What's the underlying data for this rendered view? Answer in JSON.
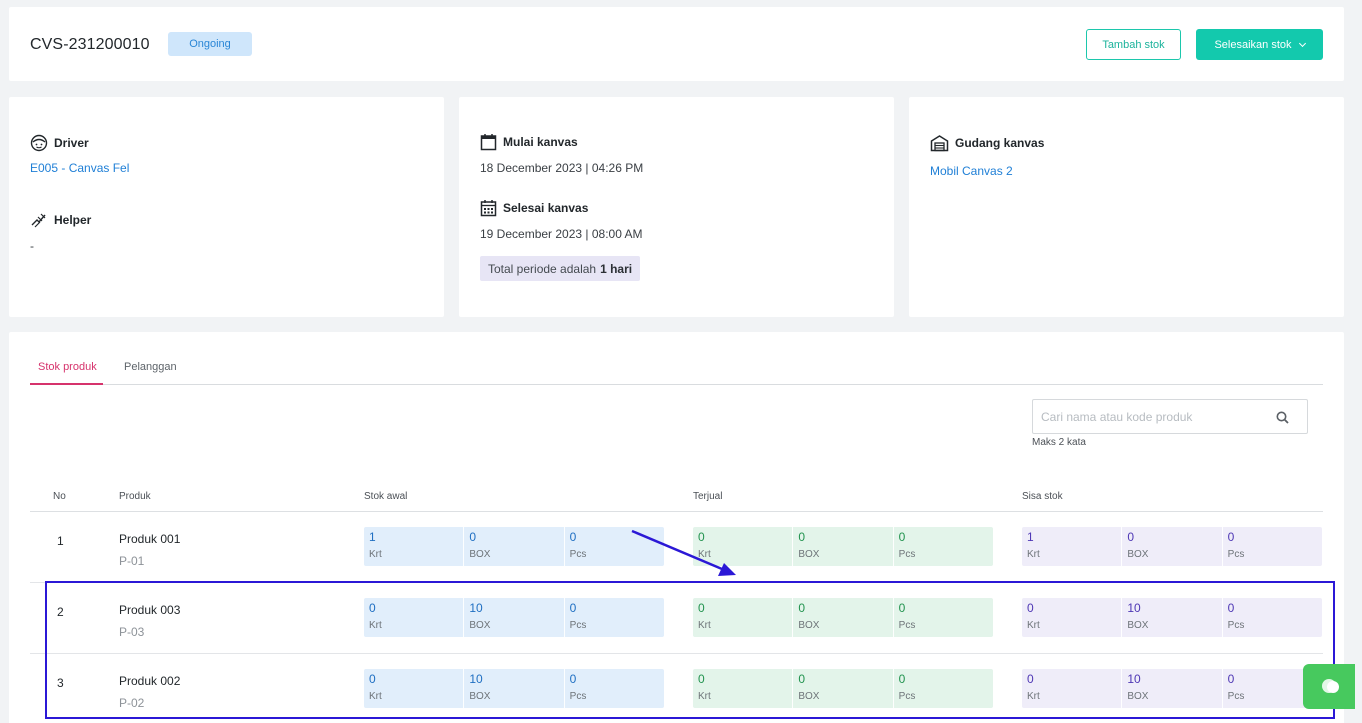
{
  "header": {
    "code": "CVS-231200010",
    "status": "Ongoing",
    "add_stock_label": "Tambah stok",
    "finish_stock_label": "Selesaikan stok"
  },
  "driver": {
    "label": "Driver",
    "value": "E005 - Canvas Fel"
  },
  "helper": {
    "label": "Helper",
    "value": "-"
  },
  "canvas_start": {
    "label": "Mulai kanvas",
    "value": "18 December 2023 | 04:26 PM"
  },
  "canvas_end": {
    "label": "Selesai kanvas",
    "value": "19 December 2023 | 08:00 AM"
  },
  "period": {
    "prefix": "Total periode adalah",
    "value": "1 hari"
  },
  "warehouse": {
    "label": "Gudang kanvas",
    "value": "Mobil Canvas 2"
  },
  "tabs": [
    {
      "label": "Stok produk"
    },
    {
      "label": "Pelanggan"
    }
  ],
  "search": {
    "placeholder": "Cari nama atau kode produk",
    "hint": "Maks 2 kata"
  },
  "table": {
    "headers": {
      "no": "No",
      "product": "Produk",
      "initial": "Stok awal",
      "sold": "Terjual",
      "remaining": "Sisa stok"
    },
    "units": [
      "Krt",
      "BOX",
      "Pcs"
    ],
    "rows": [
      {
        "no": "1",
        "name": "Produk 001",
        "code": "P-01",
        "initial": [
          "1",
          "0",
          "0"
        ],
        "sold": [
          "0",
          "0",
          "0"
        ],
        "remaining": [
          "1",
          "0",
          "0"
        ]
      },
      {
        "no": "2",
        "name": "Produk 003",
        "code": "P-03",
        "initial": [
          "0",
          "10",
          "0"
        ],
        "sold": [
          "0",
          "0",
          "0"
        ],
        "remaining": [
          "0",
          "10",
          "0"
        ]
      },
      {
        "no": "3",
        "name": "Produk 002",
        "code": "P-02",
        "initial": [
          "0",
          "10",
          "0"
        ],
        "sold": [
          "0",
          "0",
          "0"
        ],
        "remaining": [
          "0",
          "10",
          "0"
        ]
      }
    ]
  },
  "colors": {
    "accent": "#13c9ad",
    "tab_active": "#d6336c",
    "annotation": "#2b18d6",
    "chat_button": "#47c95e"
  }
}
